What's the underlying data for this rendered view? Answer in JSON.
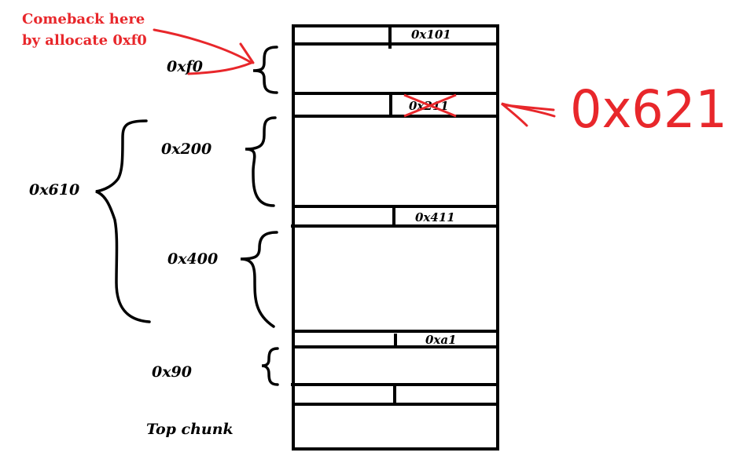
{
  "annotation": {
    "line1": "Comeback here",
    "line2": "by allocate 0xf0",
    "new_size": "0x621",
    "color": "#e8272b"
  },
  "headers": {
    "chunk1": "0x101",
    "chunk2_old": "0x211",
    "chunk3": "0x411",
    "chunk4": "0xa1"
  },
  "sizes": {
    "fx0": "0xf0",
    "s200": "0x200",
    "s400": "0x400",
    "s90": "0x90",
    "total": "0x610",
    "top": "Top chunk"
  }
}
